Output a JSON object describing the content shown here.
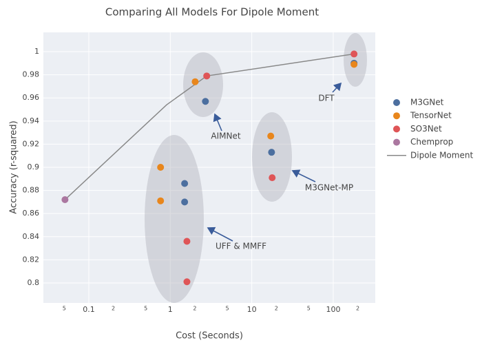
{
  "chart_data": {
    "type": "scatter",
    "title": "Comparing All Models For Dipole Moment",
    "x_label": "Cost (Seconds)",
    "y_label": "Accuracy (r-squared)",
    "x_log": true,
    "grid": true,
    "legend": "right",
    "xlim": [
      0.0277,
      328
    ],
    "ylim": [
      0.7827,
      1.0167
    ],
    "xticks": [
      0.1,
      1,
      10,
      100
    ],
    "xminor_ticks": [
      {
        "value": 0.05,
        "label": "5"
      },
      {
        "value": 0.2,
        "label": "2"
      },
      {
        "value": 0.5,
        "label": "5"
      },
      {
        "value": 2,
        "label": "2"
      },
      {
        "value": 5,
        "label": "5"
      },
      {
        "value": 20,
        "label": "2"
      },
      {
        "value": 50,
        "label": "5"
      },
      {
        "value": 200,
        "label": "2"
      }
    ],
    "yticks": [
      0.8,
      0.82,
      0.84,
      0.86,
      0.88,
      0.9,
      0.92,
      0.94,
      0.96,
      0.98,
      1
    ],
    "series": [
      {
        "name": "M3GNet",
        "color": "#4c6f9f",
        "mode": "markers",
        "x": [
          2.7,
          1.5,
          1.5,
          17.5,
          180
        ],
        "values": [
          0.957,
          0.886,
          0.87,
          0.913,
          0.99
        ]
      },
      {
        "name": "TensorNet",
        "color": "#e8861c",
        "mode": "markers",
        "x": [
          2.02,
          0.76,
          0.76,
          17.1,
          180
        ],
        "values": [
          0.974,
          0.9,
          0.871,
          0.927,
          0.989
        ]
      },
      {
        "name": "SO3Net",
        "color": "#df5557",
        "mode": "markers",
        "x": [
          2.8,
          1.6,
          1.6,
          17.8,
          180
        ],
        "values": [
          0.979,
          0.836,
          0.801,
          0.891,
          0.998
        ]
      },
      {
        "name": "Chemprop",
        "color": "#ab77a0",
        "mode": "markers",
        "x": [
          0.051
        ],
        "values": [
          0.872
        ]
      },
      {
        "name": "Dipole Moment",
        "color": "#888888",
        "mode": "lines",
        "x": [
          0.051,
          0.9,
          2.8,
          180
        ],
        "values": [
          0.872,
          0.954,
          0.979,
          0.998
        ]
      }
    ],
    "annotations": [
      "AIMNet",
      "UFF & MMFF",
      "M3GNet-MP",
      "DFT"
    ]
  }
}
